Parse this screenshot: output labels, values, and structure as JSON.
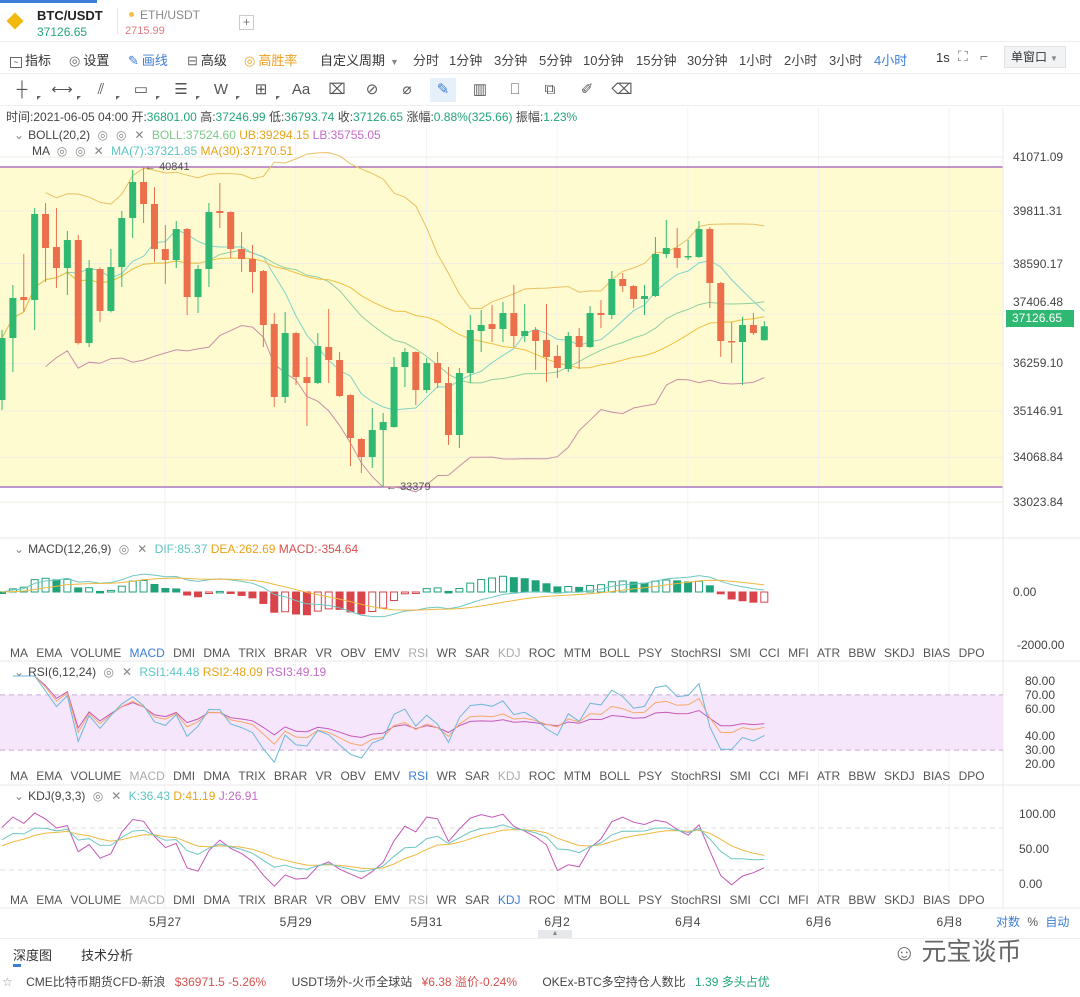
{
  "tabs": [
    {
      "symbol": "BTC/USDT",
      "price": "37126.65",
      "active": true
    },
    {
      "symbol": "ETH/USDT",
      "price": "2715.99",
      "active": false
    }
  ],
  "add_tab": "+",
  "toolbar": {
    "indicators": "指标",
    "settings": "设置",
    "draw": "画线",
    "advanced": "高级",
    "win_rate": "高胜率",
    "custom_period": "自定义周期",
    "periods": [
      "分时",
      "1分钟",
      "3分钟",
      "5分钟",
      "10分钟",
      "15分钟",
      "30分钟",
      "1小时",
      "2小时",
      "3小时",
      "4小时"
    ],
    "active_period": "4小时",
    "refresh": "1s",
    "window_mode": "单窗口"
  },
  "draw_tools": [
    "crosshair-tool",
    "horizontal-line-tool",
    "trend-line-tool",
    "rectangle-tool",
    "parallel-channel-tool",
    "wave-tool",
    "measure-tool",
    "text-tool",
    "eraser-tool",
    "magnet-tool",
    "ruler-tool",
    "pencil-tool",
    "candle-type-tool",
    "lock-tool",
    "copy-tool",
    "note-tool",
    "delete-tool"
  ],
  "info": {
    "time_label": "时间:",
    "time": "2021-06-05 04:00",
    "open_label": "开:",
    "open": "36801.00",
    "high_label": "高:",
    "high": "37246.99",
    "low_label": "低:",
    "low": "36793.74",
    "close_label": "收:",
    "close": "37126.65",
    "change_label": "涨幅:",
    "change": "0.88%(325.66)",
    "amp_label": "振幅:",
    "amp": "1.23%"
  },
  "boll": {
    "name": "BOLL(20,2)",
    "mid": "BOLL:37524.60",
    "ub": "UB:39294.15",
    "lb": "LB:35755.05"
  },
  "ma": {
    "name": "MA",
    "ma7": "MA(7):37321.85",
    "ma30": "MA(30):37170.51"
  },
  "macd": {
    "name": "MACD(12,26,9)",
    "dif": "DIF:85.37",
    "dea": "DEA:262.69",
    "macd": "MACD:-354.64"
  },
  "rsi": {
    "name": "RSI(6,12,24)",
    "rsi1": "RSI1:44.48",
    "rsi2": "RSI2:48.09",
    "rsi3": "RSI3:49.19"
  },
  "kdj": {
    "name": "KDJ(9,3,3)",
    "k": "K:36.43",
    "d": "D:41.19",
    "j": "J:26.91"
  },
  "indicator_tabs": [
    "MA",
    "EMA",
    "VOLUME",
    "MACD",
    "DMI",
    "DMA",
    "TRIX",
    "BRAR",
    "VR",
    "OBV",
    "EMV",
    "RSI",
    "WR",
    "SAR",
    "KDJ",
    "ROC",
    "MTM",
    "BOLL",
    "PSY",
    "StochRSI",
    "SMI",
    "CCI",
    "MFI",
    "ATR",
    "BBW",
    "SKDJ",
    "BIAS",
    "DPO"
  ],
  "price_axis": [
    "41071.09",
    "39811.31",
    "38590.17",
    "37406.48",
    "36259.10",
    "35146.91",
    "34068.84",
    "33023.84"
  ],
  "current_price_tag": "37126.65",
  "high_marker": "40841",
  "low_marker": "33379",
  "macd_axis": [
    "0.00",
    "-2000.00"
  ],
  "rsi_axis": [
    "80.00",
    "70.00",
    "60.00",
    "40.00",
    "30.00",
    "20.00"
  ],
  "kdj_axis": [
    "100.00",
    "50.00",
    "0.00"
  ],
  "dates": [
    "5月27",
    "5月29",
    "5月31",
    "6月2",
    "6月4",
    "6月6",
    "6月8"
  ],
  "scale_options": {
    "log": "对数",
    "percent": "%",
    "auto": "自动"
  },
  "bottom_tabs": [
    "深度图",
    "技术分析"
  ],
  "watermark": "元宝谈币",
  "ticker": [
    {
      "name": "CME比特币期货CFD-新浪",
      "value": "$36971.5",
      "change": "-5.26%"
    },
    {
      "name": "USDT场外-火币全球站",
      "value": "¥6.38",
      "label": "溢价",
      "change": "-0.24%"
    },
    {
      "name": "OKEx-BTC多空持仓人数比",
      "value": "1.39",
      "label": "多头占优"
    }
  ],
  "colors": {
    "up": "#2eb872",
    "down": "#ec6f4c",
    "accent": "#3b7dd8",
    "band": "#fffbd1",
    "rsi_band": "#f6e6fb"
  },
  "chart_data": {
    "type": "candlestick",
    "interval": "4h",
    "symbol": "BTC/USDT",
    "ylim": [
      32800,
      41300
    ],
    "candles_ohlc": [
      [
        35407,
        36853,
        37039,
        35174
      ],
      [
        36853,
        37786,
        38089,
        36060
      ],
      [
        37809,
        37739,
        38812,
        37459
      ],
      [
        37739,
        39745,
        39884,
        37039
      ],
      [
        39745,
        38952,
        40001,
        38159
      ],
      [
        38975,
        38485,
        39884,
        38019
      ],
      [
        38485,
        39138,
        39348,
        37856
      ],
      [
        39138,
        36736,
        39255,
        36700
      ],
      [
        36736,
        38485,
        38672,
        36643
      ],
      [
        38462,
        37483,
        38500,
        37226
      ],
      [
        37483,
        38509,
        38928,
        37450
      ],
      [
        38509,
        39651,
        39815,
        38042
      ],
      [
        39651,
        40491,
        40771,
        39185
      ],
      [
        40491,
        39978,
        40841,
        39535
      ],
      [
        39978,
        38928,
        40374,
        38625
      ],
      [
        38928,
        38672,
        39488,
        38112
      ],
      [
        38672,
        39395,
        39581,
        38485
      ],
      [
        39395,
        37809,
        39420,
        37389
      ],
      [
        37809,
        38462,
        38555,
        37436
      ],
      [
        38462,
        39791,
        40001,
        38042
      ],
      [
        39815,
        39768,
        40467,
        39418
      ],
      [
        39791,
        38928,
        39810,
        38718
      ],
      [
        38928,
        38695,
        39325,
        38392
      ],
      [
        38695,
        38392,
        39022,
        37902
      ],
      [
        38415,
        37156,
        38440,
        36643
      ],
      [
        37179,
        35477,
        37436,
        35244
      ],
      [
        35477,
        36969,
        37459,
        35337
      ],
      [
        36969,
        35943,
        36990,
        35757
      ],
      [
        35943,
        35803,
        36410,
        34801
      ],
      [
        35803,
        36666,
        36969,
        35780
      ],
      [
        36643,
        36340,
        37529,
        35803
      ],
      [
        36340,
        35500,
        36526,
        35480
      ],
      [
        35523,
        34521,
        35540,
        33868
      ],
      [
        34498,
        34078,
        34520,
        33705
      ],
      [
        34078,
        34707,
        35220,
        33821
      ],
      [
        34707,
        34894,
        35104,
        33379
      ],
      [
        34777,
        36177,
        36410,
        34760
      ],
      [
        36177,
        36526,
        36620,
        35710
      ],
      [
        36526,
        35640,
        36540,
        35290
      ],
      [
        35640,
        36270,
        36386,
        35570
      ],
      [
        36270,
        35803,
        36526,
        35687
      ],
      [
        35803,
        34591,
        36177,
        34358
      ],
      [
        34591,
        36037,
        36153,
        34288
      ],
      [
        36037,
        37039,
        37389,
        35803
      ],
      [
        37016,
        37156,
        37506,
        36526
      ],
      [
        37179,
        37063,
        37622,
        36760
      ],
      [
        37063,
        37436,
        37692,
        36760
      ],
      [
        37436,
        36900,
        38089,
        36643
      ],
      [
        36900,
        37016,
        37646,
        36760
      ],
      [
        37039,
        36783,
        37109,
        36107
      ],
      [
        36806,
        36410,
        37646,
        35827
      ],
      [
        36433,
        36153,
        36690,
        35920
      ],
      [
        36130,
        36900,
        36993,
        36060
      ],
      [
        36900,
        36643,
        37086,
        36130
      ],
      [
        36643,
        37436,
        37599,
        36620
      ],
      [
        37436,
        37389,
        37739,
        37086
      ],
      [
        37389,
        38229,
        38415,
        37296
      ],
      [
        38229,
        38066,
        38369,
        37926
      ],
      [
        38066,
        37762,
        38090,
        37552
      ],
      [
        37762,
        37832,
        38089,
        37389
      ],
      [
        37832,
        38812,
        39208,
        37810
      ],
      [
        38812,
        38952,
        39605,
        38718
      ],
      [
        38952,
        38718,
        39418,
        38485
      ],
      [
        38742,
        38765,
        39138,
        38672
      ],
      [
        38742,
        39395,
        39581,
        38718
      ],
      [
        39395,
        38135,
        39441,
        37552
      ],
      [
        38135,
        36783,
        38160,
        36410
      ],
      [
        36783,
        36760,
        37226,
        36270
      ],
      [
        36760,
        37156,
        37343,
        35757
      ],
      [
        37156,
        36969,
        37436,
        36923
      ],
      [
        36801,
        37126.65,
        37246.99,
        36793.74
      ]
    ],
    "indicators": [
      "BOLL(20,2)",
      "MA(7)",
      "MA(30)",
      "MACD(12,26,9)",
      "RSI(6,12,24)",
      "KDJ(9,3,3)"
    ]
  }
}
